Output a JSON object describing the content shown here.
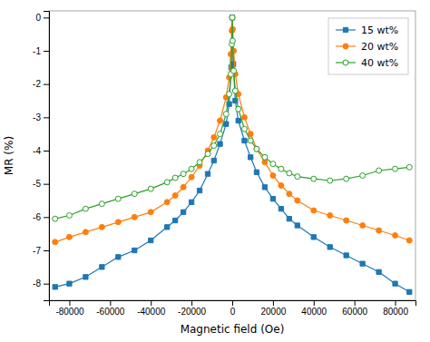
{
  "chart_data": {
    "type": "line",
    "xlabel": "Magnetic field (Oe)",
    "ylabel": "MR (%)",
    "xlim": [
      -90000,
      90000
    ],
    "ylim": [
      -8.5,
      0.2
    ],
    "xticks": [
      -80000,
      -60000,
      -40000,
      -20000,
      0,
      20000,
      40000,
      60000,
      80000
    ],
    "yticks": [
      0,
      -1,
      -2,
      -3,
      -4,
      -5,
      -6,
      -7,
      -8
    ],
    "grid": false,
    "legend": "upper right",
    "series": [
      {
        "name": "15 wt%",
        "marker": "square",
        "x": [
          -87000,
          -80000,
          -72000,
          -64000,
          -56000,
          -48000,
          -40000,
          -32000,
          -28000,
          -24000,
          -20000,
          -16000,
          -12000,
          -9000,
          -6000,
          -3000,
          -1500,
          -500,
          0,
          500,
          1500,
          3000,
          6000,
          9000,
          12000,
          16000,
          20000,
          24000,
          28000,
          32000,
          40000,
          48000,
          56000,
          64000,
          72000,
          80000,
          87000
        ],
        "values": [
          -8.1,
          -8.0,
          -7.8,
          -7.5,
          -7.2,
          -7.0,
          -6.7,
          -6.3,
          -6.1,
          -5.85,
          -5.55,
          -5.2,
          -4.7,
          -4.3,
          -3.8,
          -3.2,
          -2.6,
          -1.5,
          0.0,
          -1.4,
          -2.5,
          -3.1,
          -3.7,
          -4.2,
          -4.65,
          -5.1,
          -5.45,
          -5.75,
          -6.05,
          -6.25,
          -6.6,
          -6.9,
          -7.15,
          -7.4,
          -7.65,
          -8.0,
          -8.25
        ]
      },
      {
        "name": "20 wt%",
        "marker": "circle",
        "x": [
          -87000,
          -80000,
          -72000,
          -64000,
          -56000,
          -48000,
          -40000,
          -32000,
          -28000,
          -24000,
          -20000,
          -16000,
          -12000,
          -9000,
          -6000,
          -3000,
          -1500,
          -700,
          -200,
          0,
          200,
          700,
          1500,
          3000,
          6000,
          9000,
          12000,
          16000,
          20000,
          24000,
          28000,
          32000,
          40000,
          48000,
          56000,
          64000,
          72000,
          80000,
          87000
        ],
        "values": [
          -6.75,
          -6.6,
          -6.45,
          -6.3,
          -6.15,
          -6.0,
          -5.85,
          -5.55,
          -5.35,
          -5.1,
          -4.8,
          -4.45,
          -4.0,
          -3.6,
          -3.1,
          -2.4,
          -1.8,
          -1.1,
          -0.4,
          0.0,
          -0.35,
          -1.0,
          -1.7,
          -2.3,
          -3.0,
          -3.5,
          -3.95,
          -4.35,
          -4.75,
          -5.05,
          -5.3,
          -5.5,
          -5.8,
          -5.95,
          -6.1,
          -6.25,
          -6.4,
          -6.55,
          -6.7
        ]
      },
      {
        "name": "40 wt%",
        "marker": "circle-open",
        "x": [
          -87000,
          -80000,
          -72000,
          -64000,
          -56000,
          -48000,
          -40000,
          -32000,
          -28000,
          -24000,
          -20000,
          -16000,
          -12000,
          -9000,
          -6000,
          -3000,
          -1500,
          -700,
          -200,
          0,
          200,
          700,
          1500,
          3000,
          6000,
          9000,
          12000,
          16000,
          20000,
          24000,
          28000,
          32000,
          40000,
          48000,
          56000,
          64000,
          72000,
          80000,
          87000
        ],
        "values": [
          -6.05,
          -5.95,
          -5.75,
          -5.6,
          -5.45,
          -5.3,
          -5.15,
          -4.95,
          -4.82,
          -4.7,
          -4.55,
          -4.35,
          -4.1,
          -3.85,
          -3.5,
          -2.9,
          -2.3,
          -1.7,
          -0.8,
          0.0,
          -0.7,
          -1.6,
          -2.2,
          -2.75,
          -3.35,
          -3.7,
          -3.95,
          -4.2,
          -4.4,
          -4.55,
          -4.68,
          -4.78,
          -4.85,
          -4.9,
          -4.85,
          -4.75,
          -4.6,
          -4.55,
          -4.5
        ]
      }
    ]
  }
}
